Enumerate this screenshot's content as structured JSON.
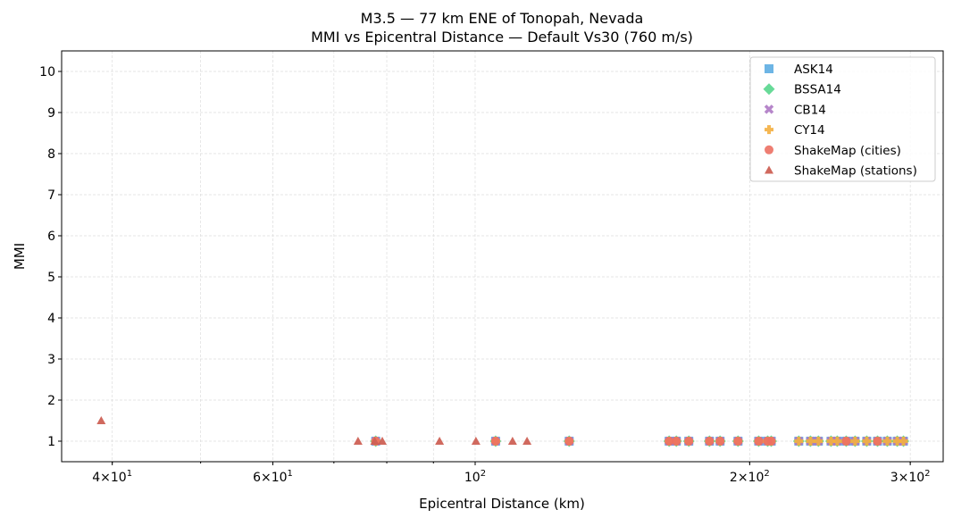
{
  "chart_data": {
    "type": "scatter",
    "title": "M3.5 — 77 km ENE of Tonopah, Nevada",
    "subtitle": "MMI vs Epicentral Distance — Default Vs30 (760 m/s)",
    "xlabel": "Epicentral Distance (km)",
    "ylabel": "MMI",
    "xscale": "log",
    "xlim": [
      35.2,
      326
    ],
    "ylim": [
      0.5,
      10.5
    ],
    "grid": true,
    "legend_position": "top-right",
    "xticks": [
      {
        "value": 40,
        "base": "4×10",
        "exp": "1"
      },
      {
        "value": 60,
        "base": "6×10",
        "exp": "1"
      },
      {
        "value": 100,
        "base": "10",
        "exp": "2"
      },
      {
        "value": 200,
        "base": "2×10",
        "exp": "2"
      },
      {
        "value": 300,
        "base": "3×10",
        "exp": "2"
      }
    ],
    "yticks": [
      "1",
      "2",
      "3",
      "4",
      "5",
      "6",
      "7",
      "8",
      "9",
      "10"
    ],
    "series": [
      {
        "name": "ASK14",
        "marker": "square",
        "color": "#5DADE2",
        "x": [
          77.8,
          105.3,
          126.8,
          163.2,
          166.2,
          171.5,
          180.7,
          185.6,
          194.2,
          204.6,
          209.3,
          211.2,
          226.4,
          233.2,
          237.9,
          245.6,
          249.5,
          255.2,
          261.0,
          268.8,
          276.2,
          283.1,
          290.3,
          294.9
        ],
        "y": [
          1,
          1,
          1,
          1,
          1,
          1,
          1,
          1,
          1,
          1,
          1,
          1,
          1,
          1,
          1,
          1,
          1,
          1,
          1,
          1,
          1,
          1,
          1,
          1
        ]
      },
      {
        "name": "BSSA14",
        "marker": "diamond",
        "color": "#58D68D",
        "x": [
          77.8,
          105.3,
          126.8,
          163.2,
          166.2,
          171.5,
          180.7,
          185.6,
          194.2,
          204.6,
          209.3,
          211.2,
          226.4,
          233.2,
          237.9,
          245.6,
          249.5,
          255.2,
          261.0,
          268.8,
          276.2,
          283.1,
          290.3,
          294.9
        ],
        "y": [
          1,
          1,
          1,
          1,
          1,
          1,
          1,
          1,
          1,
          1,
          1,
          1,
          1,
          1,
          1,
          1,
          1,
          1,
          1,
          1,
          1,
          1,
          1,
          1
        ]
      },
      {
        "name": "CB14",
        "marker": "x",
        "color": "#AF7AC5",
        "x": [
          77.8,
          105.3,
          126.8,
          163.2,
          166.2,
          171.5,
          180.7,
          185.6,
          194.2,
          204.6,
          209.3,
          211.2,
          226.4,
          233.2,
          237.9,
          245.6,
          249.5,
          255.2,
          261.0,
          268.8,
          276.2,
          283.1,
          290.3,
          294.9
        ],
        "y": [
          1,
          1,
          1,
          1,
          1,
          1,
          1,
          1,
          1,
          1,
          1,
          1,
          1,
          1,
          1,
          1,
          1,
          1,
          1,
          1,
          1,
          1,
          1,
          1
        ]
      },
      {
        "name": "CY14",
        "marker": "plus",
        "color": "#F5B041",
        "x": [
          77.8,
          105.3,
          126.8,
          163.2,
          166.2,
          171.5,
          180.7,
          185.6,
          194.2,
          204.6,
          209.3,
          211.2,
          226.4,
          233.2,
          237.9,
          245.6,
          249.5,
          255.2,
          261.0,
          268.8,
          276.2,
          283.1,
          290.3,
          294.9
        ],
        "y": [
          1,
          1,
          1,
          1,
          1,
          1,
          1,
          1,
          1,
          1,
          1,
          1,
          1,
          1,
          1,
          1,
          1,
          1,
          1,
          1,
          1,
          1,
          1,
          1
        ]
      },
      {
        "name": "ShakeMap (cities)",
        "marker": "circle",
        "color": "#EC7063",
        "x": [
          77.8,
          105.3,
          126.8,
          163.2,
          166.2,
          171.5,
          180.7,
          185.6,
          194.2,
          204.6,
          209.3,
          211.2,
          255.2,
          276.2
        ],
        "y": [
          1,
          1,
          1,
          1,
          1,
          1,
          1,
          1,
          1,
          1,
          1,
          1,
          1,
          1
        ]
      },
      {
        "name": "ShakeMap (stations)",
        "marker": "triangle",
        "color": "#CD6155",
        "x": [
          38.9,
          74.4,
          77.6,
          79.1,
          91.4,
          100.2,
          109.9,
          114.0
        ],
        "y": [
          1.5,
          1,
          1,
          1,
          1,
          1,
          1,
          1
        ]
      }
    ]
  }
}
